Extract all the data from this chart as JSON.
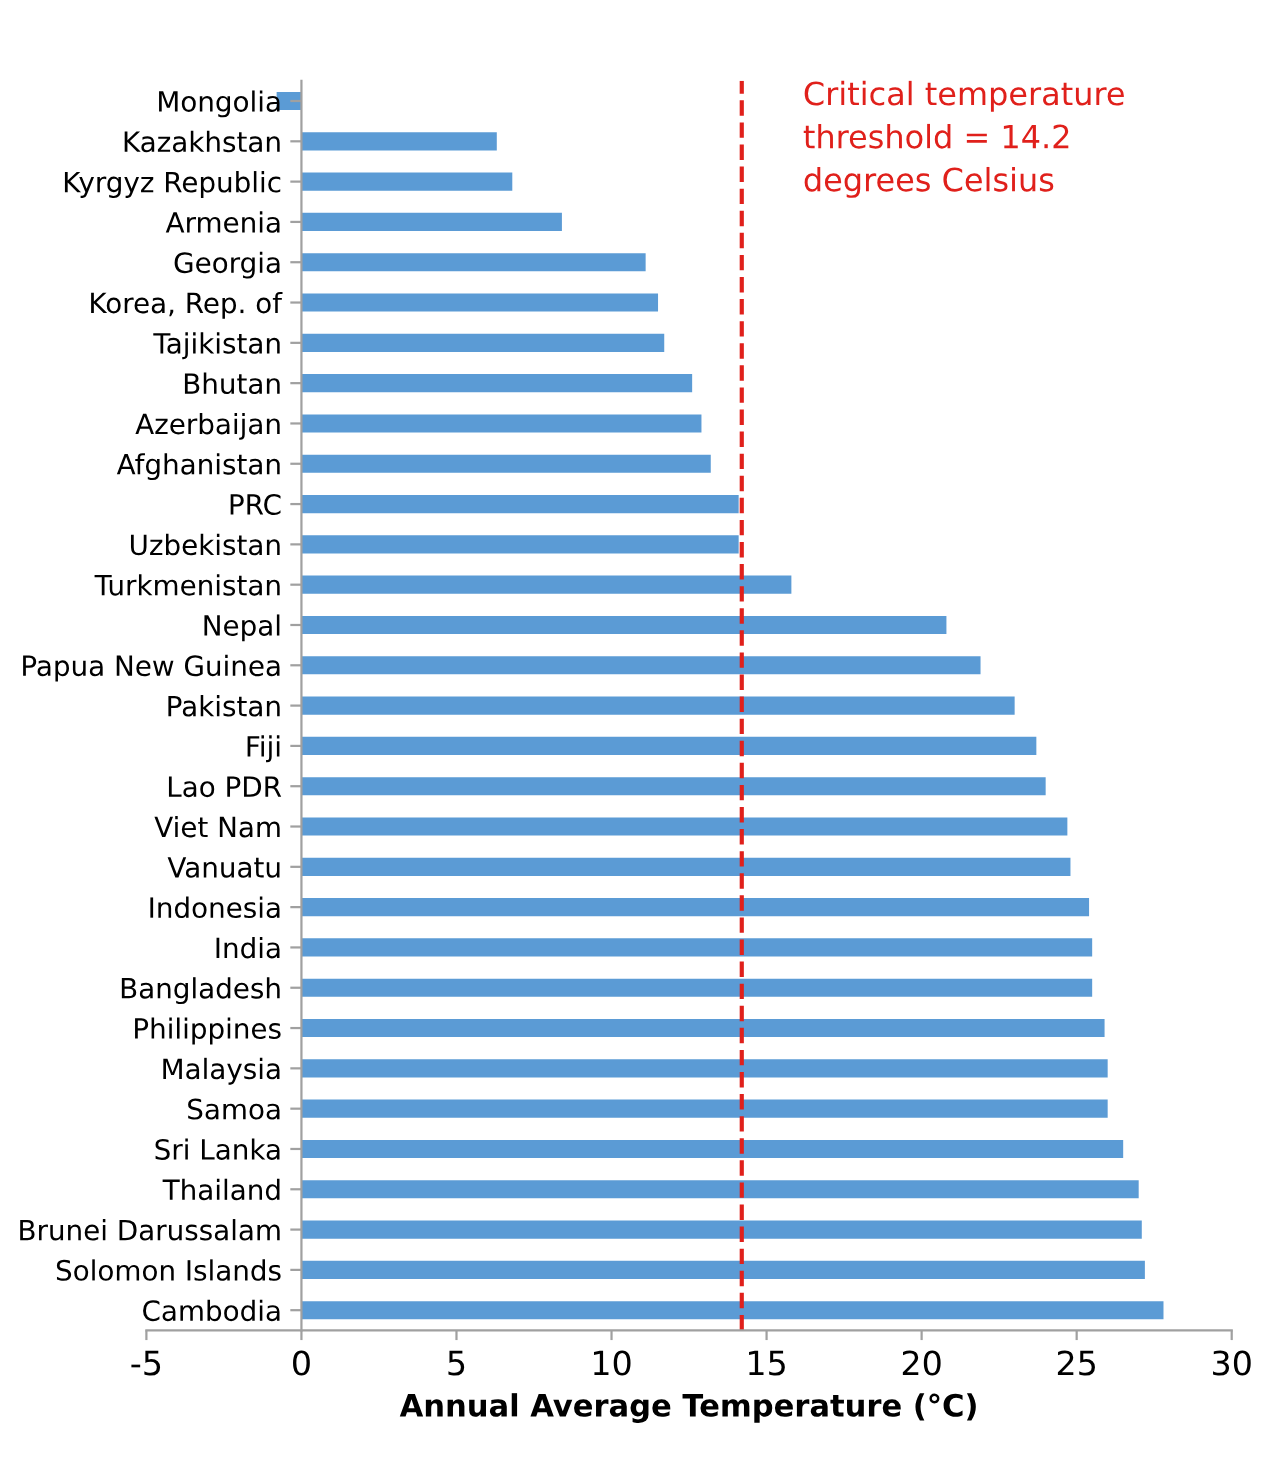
{
  "chart_data": {
    "type": "bar",
    "orientation": "horizontal",
    "xlabel": "Annual Average Temperature (°C)",
    "categories": [
      "Mongolia",
      "Kazakhstan",
      "Kyrgyz Republic",
      "Armenia",
      "Georgia",
      "Korea, Rep. of",
      "Tajikistan",
      "Bhutan",
      "Azerbaijan",
      "Afghanistan",
      "PRC",
      "Uzbekistan",
      "Turkmenistan",
      "Nepal",
      "Papua New Guinea",
      "Pakistan",
      "Fiji",
      "Lao PDR",
      "Viet Nam",
      "Vanuatu",
      "Indonesia",
      "India",
      "Bangladesh",
      "Philippines",
      "Malaysia",
      "Samoa",
      "Sri Lanka",
      "Thailand",
      "Brunei Darussalam",
      "Solomon Islands",
      "Cambodia"
    ],
    "values": [
      -0.8,
      6.3,
      6.8,
      8.4,
      11.1,
      11.5,
      11.7,
      12.6,
      12.9,
      13.2,
      14.1,
      14.1,
      15.8,
      20.8,
      21.9,
      23.0,
      23.7,
      24.0,
      24.7,
      24.8,
      25.4,
      25.5,
      25.5,
      25.9,
      26.0,
      26.0,
      26.5,
      27.0,
      27.1,
      27.2,
      27.8
    ],
    "color": "#5b9bd5",
    "xlim": [
      -5,
      30
    ],
    "xticks": [
      -5,
      0,
      5,
      10,
      15,
      20,
      25,
      30
    ],
    "ref_lines": [
      {
        "axis": "x",
        "value": 14.2,
        "label": "Critical temperature\nthreshold = 14.2\ndegrees Celsius",
        "color": "#e0201b",
        "line_style": "dashed"
      }
    ],
    "grid": false,
    "legend": false
  }
}
